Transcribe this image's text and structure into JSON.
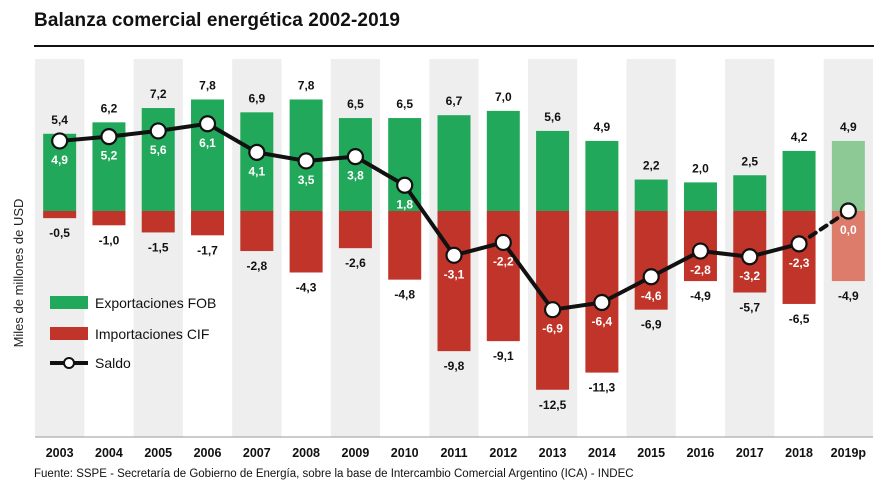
{
  "title": "Balanza comercial energética 2002-2019",
  "source": "Fuente: SSPE - Secretaría de Gobierno de Energía, sobre la base de Intercambio Comercial Argentino (ICA) - INDEC",
  "colors": {
    "exports": "#22a85a",
    "imports": "#c0342a",
    "exports_proj": "#8dc995",
    "imports_proj": "#dd7c6a",
    "saldo": "#111111",
    "col_alt": "#eeeeee",
    "grid": "#cccccc"
  },
  "chart_data": {
    "type": "bar",
    "categories": [
      "2003",
      "2004",
      "2005",
      "2006",
      "2007",
      "2008",
      "2009",
      "2010",
      "2011",
      "2012",
      "2013",
      "2014",
      "2015",
      "2016",
      "2017",
      "2018",
      "2019p"
    ],
    "projected_category": "2019p",
    "ylabel": "Miles de millones de USD",
    "ylim": [
      -15,
      10.5
    ],
    "grid": false,
    "legend_position": "left-middle",
    "series": [
      {
        "name": "Exportaciones FOB",
        "type": "bar",
        "values": [
          5.4,
          6.2,
          7.2,
          7.8,
          6.9,
          7.8,
          6.5,
          6.5,
          6.7,
          7.0,
          5.6,
          4.9,
          2.2,
          2.0,
          2.5,
          4.2,
          4.9
        ],
        "labels": [
          "5,4",
          "6,2",
          "7,2",
          "7,8",
          "6,9",
          "7,8",
          "6,5",
          "6,5",
          "6,7",
          "7,0",
          "5,6",
          "4,9",
          "2,2",
          "2,0",
          "2,5",
          "4,2",
          "4,9"
        ]
      },
      {
        "name": "Importaciones CIF",
        "type": "bar",
        "values": [
          -0.5,
          -1.0,
          -1.5,
          -1.7,
          -2.8,
          -4.3,
          -2.6,
          -4.8,
          -9.8,
          -9.1,
          -12.5,
          -11.3,
          -6.9,
          -4.9,
          -5.7,
          -6.5,
          -4.9
        ],
        "labels": [
          "-0,5",
          "-1,0",
          "-1,5",
          "-1,7",
          "-2,8",
          "-4,3",
          "-2,6",
          "-4,8",
          "-9,8",
          "-9,1",
          "-12,5",
          "-11,3",
          "-6,9",
          "-4,9",
          "-5,7",
          "-6,5",
          "-4,9"
        ]
      },
      {
        "name": "Saldo",
        "type": "line",
        "values": [
          4.9,
          5.2,
          5.6,
          6.1,
          4.1,
          3.5,
          3.8,
          1.8,
          -3.1,
          -2.2,
          -6.9,
          -6.4,
          -4.6,
          -2.8,
          -3.2,
          -2.3,
          0.0
        ],
        "labels": [
          "4,9",
          "5,2",
          "5,6",
          "6,1",
          "4,1",
          "3,5",
          "3,8",
          "1,8",
          "-3,1",
          "-2,2",
          "-6,9",
          "-6,4",
          "-4,6",
          "-2,8",
          "-3,2",
          "-2,3",
          "0,0"
        ]
      }
    ]
  }
}
